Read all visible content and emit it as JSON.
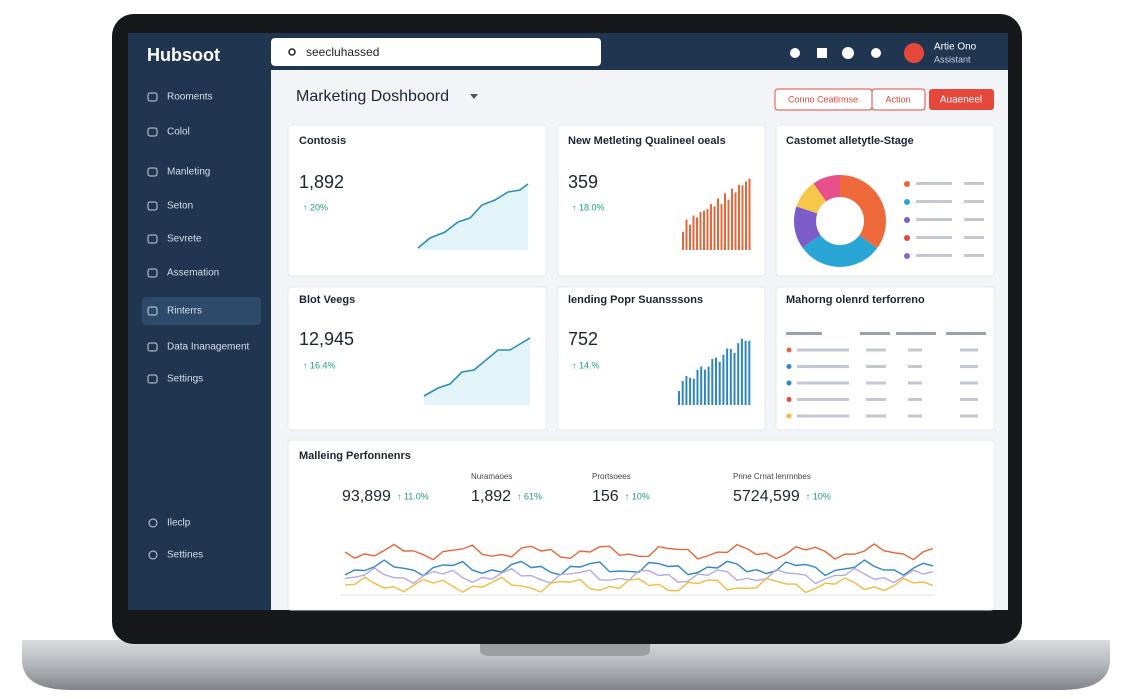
{
  "brand": "Hubsoot",
  "search": {
    "placeholder": "seecluhassed"
  },
  "user": {
    "name": "Artie Ono",
    "role": "Assistant"
  },
  "sidebar": {
    "items": [
      "Rooments",
      "Colol",
      "Manleting",
      "Seton",
      "Sevrete",
      "Assemation",
      "Rinterrs",
      "Data Inanagement",
      "Settings"
    ],
    "footer": [
      "Ileclp",
      "Settines"
    ]
  },
  "header": {
    "title": "Marketing Doshboord",
    "buttons": [
      "Conno Ceatlrmse",
      "Action",
      "Auaeneel"
    ]
  },
  "cards": [
    {
      "title": "Contosis",
      "value": "1,892",
      "delta": "↑ 20%"
    },
    {
      "title": "New Metleting Qualineel oeals",
      "value": "359",
      "delta": "↑ 18.0%"
    },
    {
      "title": "Castomet alletytle-Stage"
    },
    {
      "title": "Blot Veegs",
      "value": "12,945",
      "delta": "↑ 16.4%"
    },
    {
      "title": "lending Popr Suansssons",
      "value": "752",
      "delta": "↑ 14.%"
    },
    {
      "title": "Mahorng olenrd terforreno"
    }
  ],
  "performance": {
    "title": "Malleing Perfonnenrs",
    "stats": [
      {
        "label": null,
        "value": "93,899",
        "delta": "↑ 11.0%"
      },
      {
        "label": "Nuramaoes",
        "value": "1,892",
        "delta": "↑ 61%"
      },
      {
        "label": "Prortsoees",
        "value": "156",
        "delta": "↑ 10%"
      },
      {
        "label": "Prine Crnat lenrnnbes",
        "value": "5724,599",
        "delta": "↑ 10%"
      }
    ]
  }
}
